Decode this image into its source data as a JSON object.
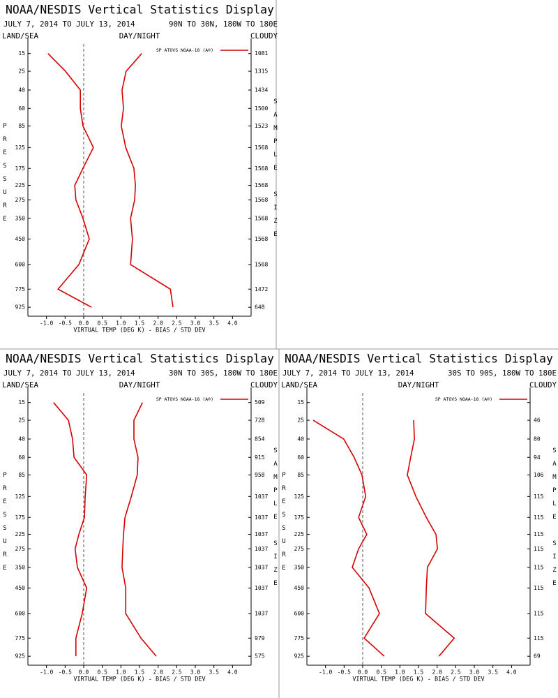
{
  "chart_data": [
    {
      "type": "line",
      "title": "NOAA/NESDIS Vertical Statistics Display",
      "subtitle": "JULY 7, 2014 TO JULY 13, 2014",
      "region": "90N TO 30N, 180W TO 180E",
      "land_sea": "LAND/SEA",
      "day_night": "DAY/NIGHT",
      "cloudy": "CLOUDY",
      "xlabel": "VIRTUAL TEMP (DEG K) - BIAS / STD DEV",
      "ylabel": "PRESSURE",
      "y2label": "SAMPLE SIZE",
      "xlim": [
        -1.5,
        4.5
      ],
      "xticks": [
        {
          "value": -1,
          "label": "-1.0"
        },
        -0.5,
        {
          "value": 0,
          "label": "0.0"
        },
        0.5,
        {
          "value": 1,
          "label": "1.0"
        },
        1.5,
        {
          "value": 2,
          "label": "2.0"
        },
        2.5,
        {
          "value": 3,
          "label": "3.0"
        },
        3.5,
        {
          "value": 4,
          "label": "4.0"
        }
      ],
      "ylim": [
        10,
        1000
      ],
      "yscale": "power",
      "y": [
        15,
        25,
        40,
        60,
        85,
        125,
        175,
        225,
        275,
        350,
        450,
        600,
        775,
        925
      ],
      "yticks": [
        15,
        25,
        40,
        60,
        85,
        125,
        175,
        225,
        275,
        350,
        450,
        600,
        775,
        925
      ],
      "series": [
        {
          "name": "SP ATOVS NOAA-18 (A®)",
          "color": "#d40000",
          "bias": [
            -0.96,
            -0.49,
            -0.09,
            -0.09,
            -0.02,
            0.26,
            -0.02,
            -0.24,
            -0.21,
            -0.02,
            0.15,
            -0.13,
            -0.69,
            0.21
          ],
          "std_dev": [
            1.56,
            1.14,
            1.03,
            1.07,
            1.01,
            1.13,
            1.35,
            1.39,
            1.37,
            1.26,
            1.31,
            1.26,
            2.33,
            2.4
          ]
        }
      ],
      "sample_size": [
        1081,
        1315,
        1434,
        1500,
        1523,
        1568,
        1568,
        1568,
        1568,
        1568,
        1568,
        1568,
        1472,
        648
      ]
    },
    {
      "type": "line",
      "title": "NOAA/NESDIS Vertical Statistics Display",
      "subtitle": "JULY 7, 2014 TO JULY 13, 2014",
      "region": "30N TO 30S, 180W TO 180E",
      "land_sea": "LAND/SEA",
      "day_night": "DAY/NIGHT",
      "cloudy": "CLOUDY",
      "xlabel": "VIRTUAL TEMP (DEG K) - BIAS / STD DEV",
      "ylabel": "PRESSURE",
      "y2label": "SAMPLE SIZE",
      "xlim": [
        -1.5,
        4.5
      ],
      "xticks": [
        {
          "value": -1,
          "label": "-1.0"
        },
        -0.5,
        {
          "value": 0,
          "label": "0.0"
        },
        0.5,
        {
          "value": 1,
          "label": "1.0"
        },
        1.5,
        {
          "value": 2,
          "label": "2.0"
        },
        2.5,
        {
          "value": 3,
          "label": "3.0"
        },
        3.5,
        {
          "value": 4,
          "label": "4.0"
        }
      ],
      "ylim": [
        10,
        1000
      ],
      "yscale": "power",
      "y": [
        15,
        25,
        40,
        60,
        85,
        125,
        175,
        225,
        275,
        350,
        450,
        600,
        775,
        925
      ],
      "yticks": [
        15,
        25,
        40,
        60,
        85,
        125,
        175,
        225,
        275,
        350,
        450,
        600,
        775,
        925
      ],
      "series": [
        {
          "name": "SP ATOVS NOAA-18 (A®)",
          "color": "#d40000",
          "bias": [
            -0.81,
            -0.41,
            -0.3,
            -0.26,
            0.08,
            0.04,
            0.02,
            -0.13,
            -0.23,
            -0.17,
            0.08,
            -0.04,
            -0.21,
            -0.21
          ],
          "std_dev": [
            1.58,
            1.35,
            1.35,
            1.46,
            1.44,
            1.28,
            1.11,
            1.07,
            1.05,
            1.03,
            1.13,
            1.13,
            1.54,
            1.95
          ]
        }
      ],
      "sample_size": [
        509,
        728,
        854,
        915,
        958,
        1037,
        1037,
        1037,
        1037,
        1037,
        1037,
        1037,
        979,
        575
      ]
    },
    {
      "type": "line",
      "title": "NOAA/NESDIS Vertical Statistics Display",
      "subtitle": "JULY 7, 2014 TO JULY 13, 2014",
      "region": "30S TO 90S, 180W TO 180E",
      "land_sea": "LAND/SEA",
      "day_night": "DAY/NIGHT",
      "cloudy": "CLOUDY",
      "xlabel": "VIRTUAL TEMP (DEG K) - BIAS / STD DEV",
      "ylabel": "PRESSURE",
      "y2label": "SAMPLE SIZE",
      "xlim": [
        -1.5,
        4.5
      ],
      "xticks": [
        {
          "value": -1,
          "label": "-1.0"
        },
        -0.5,
        {
          "value": 0,
          "label": "0.0"
        },
        0.5,
        {
          "value": 1,
          "label": "1.0"
        },
        1.5,
        {
          "value": 2,
          "label": "2.0"
        },
        2.5,
        {
          "value": 3,
          "label": "3.0"
        },
        3.5,
        {
          "value": 4,
          "label": "4.0"
        }
      ],
      "ylim": [
        10,
        1000
      ],
      "yscale": "power",
      "y": [
        15,
        25,
        40,
        60,
        85,
        125,
        175,
        225,
        275,
        350,
        450,
        600,
        775,
        925
      ],
      "yticks": [
        15,
        25,
        40,
        60,
        85,
        125,
        175,
        225,
        275,
        350,
        450,
        600,
        775,
        925
      ],
      "series": [
        {
          "name": "SP ATOVS NOAA-18 (A®)",
          "color": "#d40000",
          "bias": [
            null,
            -1.33,
            -0.51,
            -0.23,
            -0.02,
            0.08,
            -0.11,
            0.11,
            -0.11,
            -0.28,
            0.17,
            0.45,
            0.04,
            0.58
          ],
          "std_dev": [
            null,
            1.37,
            1.39,
            1.29,
            1.2,
            1.43,
            1.71,
            1.97,
            2.01,
            1.74,
            1.71,
            1.69,
            2.46,
            2.05
          ]
        }
      ],
      "sample_size": [
        null,
        46,
        80,
        94,
        106,
        115,
        115,
        115,
        115,
        115,
        115,
        115,
        115,
        69
      ]
    }
  ]
}
